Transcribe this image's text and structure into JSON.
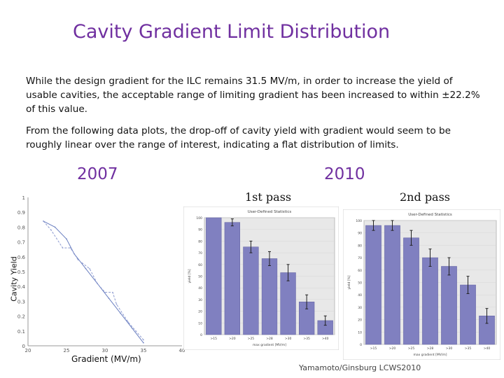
{
  "title": "Cavity Gradient Limit Distribution",
  "paragraph1": "While the design gradient for the ILC remains 31.5 MV/m, in order to increase the yield of usable cavities, the acceptable range of limiting gradient has been increased to within ±22.2% of this value.",
  "paragraph2": "From the following data plots, the drop-off of cavity yield with gradient would seem to be roughly linear over the range of interest, indicating a flat distribution of limits.",
  "year_2007": "2007",
  "year_2010": "2010",
  "pass1_label": "1st pass",
  "pass2_label": "2nd pass",
  "credit": "Yamamoto/Ginsburg LCWS2010",
  "colors": {
    "title": "#7030a0",
    "bar": "#8080c0",
    "bar_edge": "#6060a0",
    "panel_bg": "#e8e8e8"
  },
  "chart_data": [
    {
      "type": "line",
      "title": "2007",
      "xlabel": "Gradient (MV/m)",
      "ylabel": "Cavity Yield",
      "xlim": [
        20,
        40
      ],
      "ylim": [
        0,
        1
      ],
      "xticks": [
        "20",
        "25",
        "30",
        "35",
        "40"
      ],
      "yticks": [
        "0",
        "0.1",
        "0.2",
        "0.3",
        "0.4",
        "0.5",
        "0.6",
        "0.7",
        "0.8",
        "0.9",
        "1"
      ],
      "series": [
        {
          "name": "solid",
          "x": [
            22,
            23.5,
            25,
            26,
            27.5,
            29,
            30.5,
            32,
            33.5,
            35
          ],
          "y": [
            0.84,
            0.8,
            0.72,
            0.62,
            0.52,
            0.42,
            0.32,
            0.22,
            0.12,
            0.02
          ]
        },
        {
          "name": "dashed",
          "x": [
            22,
            23,
            24.5,
            25.5,
            26.5,
            28,
            29,
            30,
            31,
            31.5,
            33,
            34,
            35
          ],
          "y": [
            0.84,
            0.78,
            0.66,
            0.66,
            0.58,
            0.52,
            0.42,
            0.36,
            0.36,
            0.28,
            0.16,
            0.1,
            0.04
          ]
        }
      ]
    },
    {
      "type": "bar",
      "title": "User-Defined Statistics",
      "subtitle": "1st pass",
      "xlabel": "max gradient [MV/m]",
      "ylabel": "yield [%]",
      "ylim": [
        0,
        100
      ],
      "yticks": [
        "0",
        "10",
        "20",
        "30",
        "40",
        "50",
        "60",
        "70",
        "80",
        "90",
        "100"
      ],
      "categories": [
        ">15",
        ">20",
        ">25",
        ">28",
        ">30",
        ">35",
        ">40"
      ],
      "values": [
        100,
        96,
        75,
        65,
        53,
        28,
        12
      ],
      "errors": [
        0,
        3,
        5,
        6,
        7,
        6,
        4
      ]
    },
    {
      "type": "bar",
      "title": "User-Defined Statistics",
      "subtitle": "2nd pass",
      "xlabel": "max gradient [MV/m]",
      "ylabel": "yield [%]",
      "ylim": [
        0,
        100
      ],
      "yticks": [
        "0",
        "10",
        "20",
        "30",
        "40",
        "50",
        "60",
        "70",
        "80",
        "90",
        "100"
      ],
      "categories": [
        ">15",
        ">20",
        ">25",
        ">28",
        ">30",
        ">35",
        ">40"
      ],
      "values": [
        96,
        96,
        86,
        70,
        63,
        48,
        23
      ],
      "errors": [
        4,
        4,
        6,
        7,
        7,
        7,
        6
      ]
    }
  ]
}
